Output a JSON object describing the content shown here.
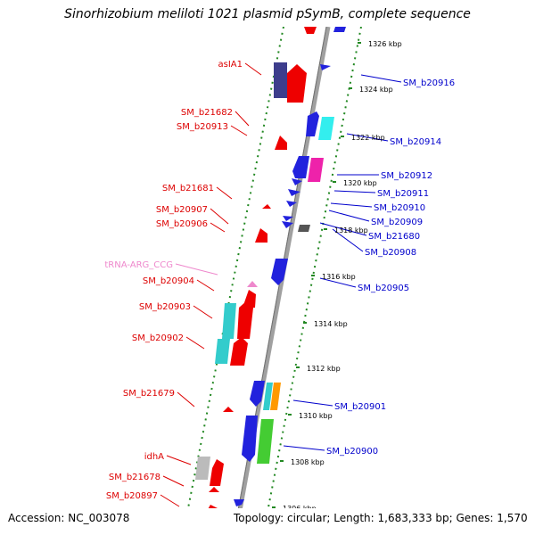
{
  "title": "Sinorhizobium meliloti 1021 plasmid pSymB, complete sequence",
  "accession": "Accession: NC_003078",
  "topology": "Topology: circular; Length: 1,683,333 bp; Genes: 1,570",
  "colors": {
    "backbone": "#a0a0a0",
    "dots": "#228822",
    "left_label": "#dd0000",
    "right_label": "#0000cc",
    "trna_label": "#ee88cc"
  },
  "ticks": [
    {
      "label": "1326 kbp"
    },
    {
      "label": "1324 kbp"
    },
    {
      "label": "1322 kbp"
    },
    {
      "label": "1320 kbp"
    },
    {
      "label": "1318 kbp"
    },
    {
      "label": "1316 kbp"
    },
    {
      "label": "1314 kbp"
    },
    {
      "label": "1312 kbp"
    },
    {
      "label": "1310 kbp"
    },
    {
      "label": "1308 kbp"
    },
    {
      "label": "1306 kbp"
    }
  ],
  "left_labels": [
    {
      "text": "asIA1"
    },
    {
      "text": "SM_b21682"
    },
    {
      "text": "SM_b20913"
    },
    {
      "text": "SM_b21681"
    },
    {
      "text": "SM_b20907"
    },
    {
      "text": "SM_b20906"
    },
    {
      "text": "tRNA-ARG_CCG"
    },
    {
      "text": "SM_b20904"
    },
    {
      "text": "SM_b20903"
    },
    {
      "text": "SM_b20902"
    },
    {
      "text": "SM_b21679"
    },
    {
      "text": "idhA"
    },
    {
      "text": "SM_b21678"
    },
    {
      "text": "SM_b20897"
    }
  ],
  "right_labels": [
    {
      "text": "SM_b20916"
    },
    {
      "text": "SM_b20914"
    },
    {
      "text": "SM_b20912"
    },
    {
      "text": "SM_b20911"
    },
    {
      "text": "SM_b20910"
    },
    {
      "text": "SM_b20909"
    },
    {
      "text": "SM_b21680"
    },
    {
      "text": "SM_b20908"
    },
    {
      "text": "SM_b20905"
    },
    {
      "text": "SM_b20901"
    },
    {
      "text": "SM_b20900"
    }
  ]
}
